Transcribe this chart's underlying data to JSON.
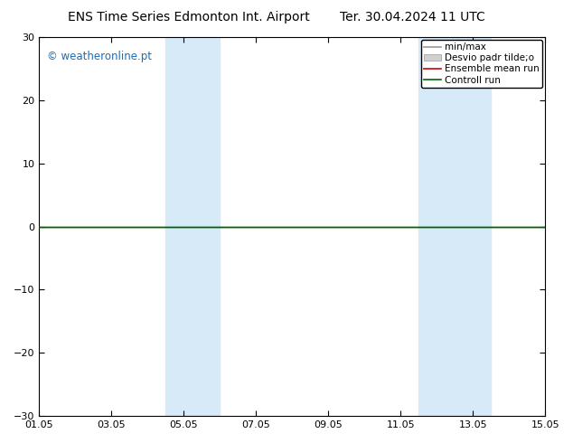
{
  "title_left": "ENS Time Series Edmonton Int. Airport",
  "title_right": "Ter. 30.04.2024 11 UTC",
  "ylim": [
    -30,
    30
  ],
  "yticks": [
    -30,
    -20,
    -10,
    0,
    10,
    20,
    30
  ],
  "xtick_labels": [
    "01.05",
    "03.05",
    "05.05",
    "07.05",
    "09.05",
    "11.05",
    "13.05",
    "15.05"
  ],
  "xtick_positions": [
    0,
    2,
    4,
    6,
    8,
    10,
    12,
    14
  ],
  "xlim": [
    0,
    14
  ],
  "shaded_bands": [
    {
      "x_start": 3.5,
      "x_end": 5.0
    },
    {
      "x_start": 10.5,
      "x_end": 12.5
    }
  ],
  "shaded_color": "#d6eaf8",
  "controll_run_y": 0,
  "controll_run_color": "#006400",
  "ensemble_mean_color": "#cc0000",
  "minmax_color": "#999999",
  "std_color": "#d0d0d0",
  "watermark": "© weatheronline.pt",
  "watermark_color": "#1a6fbd",
  "legend_labels": [
    "min/max",
    "Desvio padr tilde;o",
    "Ensemble mean run",
    "Controll run"
  ],
  "background_color": "#ffffff",
  "plot_background": "#ffffff",
  "title_fontsize": 10,
  "tick_fontsize": 8,
  "legend_fontsize": 7.5
}
